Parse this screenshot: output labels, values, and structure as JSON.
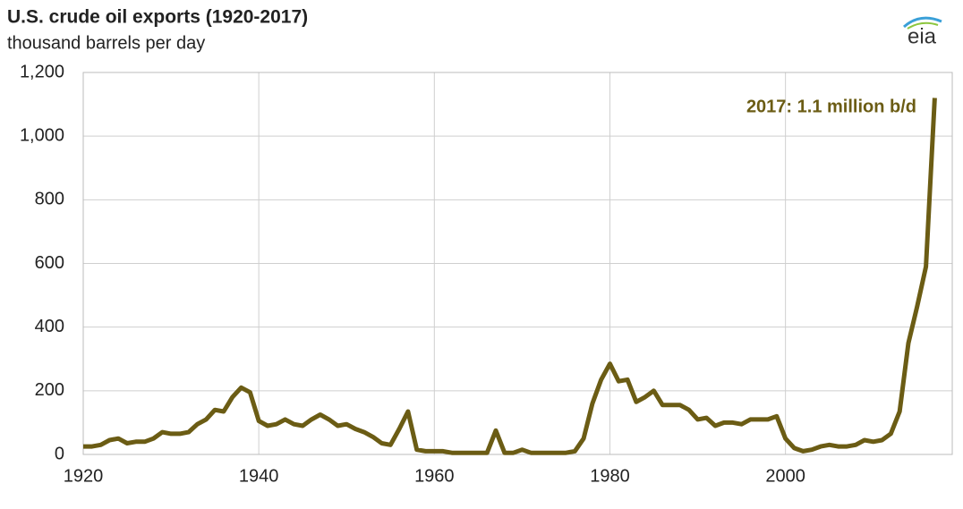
{
  "chart_data": {
    "type": "line",
    "title": "U.S. crude oil exports (1920-2017)",
    "subtitle": "thousand barrels per day",
    "annotation": "2017: 1.1 million b/d",
    "logo": "eia",
    "color": "#6b5c14",
    "grid": true,
    "x": [
      1920,
      1921,
      1922,
      1923,
      1924,
      1925,
      1926,
      1927,
      1928,
      1929,
      1930,
      1931,
      1932,
      1933,
      1934,
      1935,
      1936,
      1937,
      1938,
      1939,
      1940,
      1941,
      1942,
      1943,
      1944,
      1945,
      1946,
      1947,
      1948,
      1949,
      1950,
      1951,
      1952,
      1953,
      1954,
      1955,
      1956,
      1957,
      1958,
      1959,
      1960,
      1961,
      1962,
      1963,
      1964,
      1965,
      1966,
      1967,
      1968,
      1969,
      1970,
      1971,
      1972,
      1973,
      1974,
      1975,
      1976,
      1977,
      1978,
      1979,
      1980,
      1981,
      1982,
      1983,
      1984,
      1985,
      1986,
      1987,
      1988,
      1989,
      1990,
      1991,
      1992,
      1993,
      1994,
      1995,
      1996,
      1997,
      1998,
      1999,
      2000,
      2001,
      2002,
      2003,
      2004,
      2005,
      2006,
      2007,
      2008,
      2009,
      2010,
      2011,
      2012,
      2013,
      2014,
      2015,
      2016,
      2017
    ],
    "values": [
      25,
      25,
      30,
      45,
      50,
      35,
      40,
      40,
      50,
      70,
      65,
      65,
      70,
      95,
      110,
      140,
      135,
      180,
      210,
      195,
      105,
      90,
      95,
      110,
      95,
      90,
      110,
      125,
      110,
      90,
      95,
      80,
      70,
      55,
      35,
      30,
      80,
      135,
      15,
      10,
      10,
      10,
      5,
      5,
      5,
      5,
      5,
      75,
      5,
      5,
      15,
      5,
      5,
      5,
      5,
      5,
      10,
      50,
      160,
      235,
      285,
      230,
      235,
      165,
      180,
      200,
      155,
      155,
      155,
      140,
      110,
      115,
      90,
      100,
      100,
      95,
      110,
      110,
      110,
      120,
      50,
      20,
      10,
      15,
      25,
      30,
      25,
      25,
      30,
      45,
      40,
      45,
      65,
      135,
      350,
      465,
      590,
      1120
    ],
    "xlim": [
      1920,
      2019
    ],
    "xticks": [
      1920,
      1940,
      1960,
      1980,
      2000
    ],
    "ylim": [
      0,
      1200
    ],
    "yticks": [
      0,
      200,
      400,
      600,
      800,
      {
        "value": 1000,
        "label": "1,000"
      },
      {
        "value": 1200,
        "label": "1,200"
      }
    ]
  }
}
